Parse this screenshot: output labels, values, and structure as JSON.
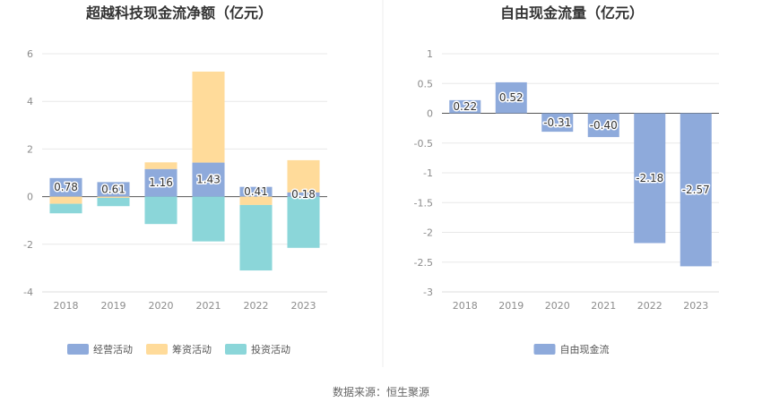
{
  "source": "数据来源：恒生聚源",
  "chart_data": [
    {
      "type": "bar",
      "stacked": true,
      "title": "超越科技现金流净额（亿元）",
      "categories": [
        "2018",
        "2019",
        "2020",
        "2021",
        "2022",
        "2023"
      ],
      "ylim": [
        -4,
        6
      ],
      "yticks": [
        -4,
        -2,
        0,
        2,
        4,
        6
      ],
      "grid": true,
      "legend_position": "bottom",
      "series": [
        {
          "name": "经营活动",
          "color": "#8eaadb",
          "values": [
            0.78,
            0.61,
            1.16,
            1.43,
            0.41,
            0.18
          ],
          "labels": [
            "0.78",
            "0.61",
            "1.16",
            "1.43",
            "0.41",
            "0.18"
          ]
        },
        {
          "name": "筹资活动",
          "color": "#ffdb9a",
          "values": [
            -0.3,
            -0.05,
            0.28,
            3.82,
            -0.35,
            1.35
          ]
        },
        {
          "name": "投资活动",
          "color": "#8bd6d9",
          "values": [
            -0.4,
            -0.35,
            -1.15,
            -1.88,
            -2.75,
            -2.15
          ]
        }
      ]
    },
    {
      "type": "bar",
      "title": "自由现金流量（亿元）",
      "categories": [
        "2018",
        "2019",
        "2020",
        "2021",
        "2022",
        "2023"
      ],
      "ylim": [
        -3,
        1
      ],
      "yticks": [
        -3,
        -2.5,
        -2,
        -1.5,
        -1,
        -0.5,
        0,
        0.5,
        1
      ],
      "grid": true,
      "legend_position": "bottom",
      "series": [
        {
          "name": "自由现金流",
          "color": "#8eaadb",
          "values": [
            0.22,
            0.52,
            -0.31,
            -0.4,
            -2.18,
            -2.57
          ],
          "labels": [
            "0.22",
            "0.52",
            "-0.31",
            "-0.40",
            "-2.18",
            "-2.57"
          ]
        }
      ]
    }
  ]
}
